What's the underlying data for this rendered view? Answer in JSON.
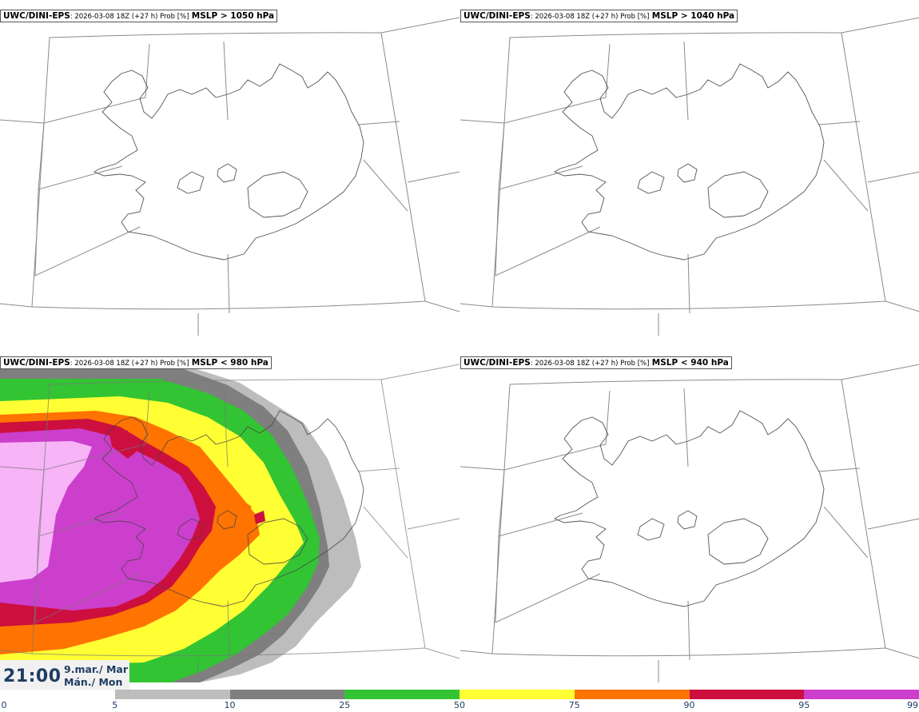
{
  "panels": [
    {
      "model": "UWC/DINI-EPS",
      "meta": ": 2026-03-08 18Z (+27 h) Prob [%]",
      "threshold": "MSLP > 1050 hPa"
    },
    {
      "model": "UWC/DINI-EPS",
      "meta": ": 2026-03-08 18Z (+27 h) Prob [%]",
      "threshold": "MSLP > 1040 hPa"
    },
    {
      "model": "UWC/DINI-EPS",
      "meta": ": 2026-03-08 18Z (+27 h) Prob [%]",
      "threshold": "MSLP < 980 hPa"
    },
    {
      "model": "UWC/DINI-EPS",
      "meta": ": 2026-03-08 18Z (+27 h) Prob [%]",
      "threshold": "MSLP < 940 hPa"
    }
  ],
  "valid_time": {
    "time": "21:00",
    "date_line1": "9.mar./ Mar",
    "date_line2": "Mán./ Mon"
  },
  "colorbar": {
    "ticks": [
      "0",
      "5",
      "10",
      "25",
      "50",
      "75",
      "90",
      "95",
      "99"
    ],
    "colors": [
      "#ffffff",
      "#bdbdbd",
      "#7f7f7f",
      "#33c433",
      "#ffff33",
      "#ff7300",
      "#cc0f3f",
      "#cc3fcc",
      "#f7b4f7"
    ]
  }
}
